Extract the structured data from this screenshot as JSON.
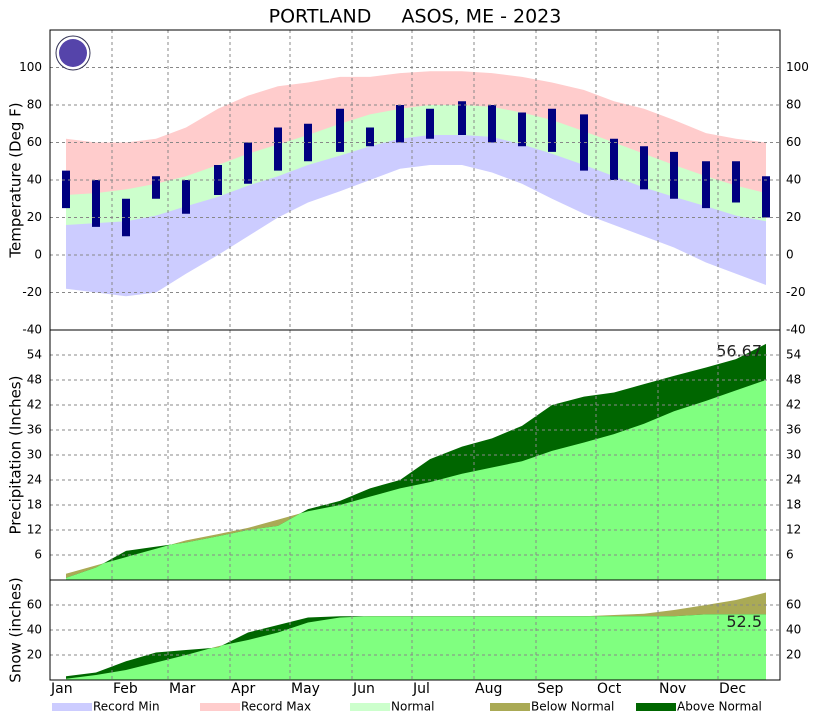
{
  "title": "PORTLAND     ASOS, ME - 2023",
  "legend": [
    {
      "name": "Record Min",
      "color": "#ccccff"
    },
    {
      "name": "Record Max",
      "color": "#ffcccc"
    },
    {
      "name": "Normal",
      "color": "#ccffcc"
    },
    {
      "name": "Below Normal",
      "color": "#aaaa55"
    },
    {
      "name": "Above Normal",
      "color": "#006600"
    }
  ],
  "chart_data": [
    {
      "type": "temperature",
      "y_label": "Temperature (Deg F)",
      "x": [
        8,
        23,
        38,
        53,
        68,
        84,
        99,
        114,
        129,
        145,
        160,
        175,
        190,
        206,
        221,
        236,
        251,
        267,
        282,
        297,
        312,
        328,
        343,
        358
      ],
      "record_max": [
        62,
        60,
        60,
        62,
        68,
        78,
        85,
        90,
        92,
        95,
        95,
        97,
        98,
        98,
        97,
        95,
        92,
        88,
        82,
        78,
        72,
        65,
        62,
        60
      ],
      "normal_high": [
        32,
        33,
        35,
        38,
        42,
        48,
        54,
        59,
        64,
        70,
        75,
        78,
        80,
        80,
        79,
        76,
        72,
        66,
        60,
        54,
        48,
        42,
        37,
        33
      ],
      "normal_low": [
        16,
        17,
        18,
        21,
        26,
        31,
        37,
        42,
        48,
        53,
        58,
        62,
        64,
        64,
        63,
        59,
        54,
        48,
        42,
        36,
        31,
        26,
        21,
        18
      ],
      "record_min": [
        -18,
        -20,
        -22,
        -20,
        -10,
        0,
        10,
        20,
        28,
        34,
        40,
        46,
        48,
        48,
        44,
        38,
        30,
        22,
        16,
        10,
        4,
        -4,
        -10,
        -16
      ],
      "actual_high": [
        45,
        40,
        30,
        42,
        40,
        48,
        60,
        68,
        70,
        78,
        68,
        80,
        78,
        82,
        80,
        76,
        78,
        75,
        62,
        58,
        55,
        50,
        50,
        42
      ],
      "actual_low": [
        25,
        15,
        10,
        30,
        22,
        32,
        38,
        45,
        50,
        55,
        58,
        60,
        62,
        64,
        60,
        58,
        55,
        45,
        40,
        35,
        30,
        25,
        28,
        20
      ],
      "actual_color": "#000080",
      "xlim": [
        0,
        365
      ],
      "xticks": [
        {
          "value": 0,
          "label": "Jan"
        },
        {
          "value": 31,
          "label": "Feb"
        },
        {
          "value": 59,
          "label": "Mar"
        },
        {
          "value": 90,
          "label": "Apr"
        },
        {
          "value": 120,
          "label": "May"
        },
        {
          "value": 151,
          "label": "Jun"
        },
        {
          "value": 181,
          "label": "Jul"
        },
        {
          "value": 212,
          "label": "Aug"
        },
        {
          "value": 243,
          "label": "Sep"
        },
        {
          "value": 273,
          "label": "Oct"
        },
        {
          "value": 304,
          "label": "Nov"
        },
        {
          "value": 334,
          "label": "Dec"
        }
      ],
      "ylim": [
        -40,
        120
      ],
      "yticks": [
        -40,
        -20,
        0,
        20,
        40,
        60,
        80,
        100
      ],
      "grid": true
    },
    {
      "type": "cumulative",
      "y_label": "Precipitation (Inches)",
      "x": [
        8,
        23,
        38,
        53,
        68,
        84,
        99,
        114,
        129,
        145,
        160,
        175,
        190,
        206,
        221,
        236,
        251,
        267,
        282,
        297,
        312,
        328,
        343,
        358
      ],
      "actual": [
        0.5,
        3,
        7,
        8,
        9,
        10.5,
        12,
        13,
        17,
        19,
        22,
        24,
        29,
        32,
        34,
        37,
        42,
        44,
        45,
        47,
        49,
        51,
        53,
        56.67
      ],
      "normal": [
        1.5,
        3.5,
        5.5,
        7.5,
        9.5,
        11,
        12.5,
        14.5,
        16.5,
        18,
        20,
        22,
        23.5,
        25.5,
        27,
        28.5,
        31,
        33,
        35,
        37.5,
        40.5,
        43,
        45.5,
        48
      ],
      "normal_color": "#80ff80",
      "annotation": "56.67",
      "ylim": [
        0,
        60
      ],
      "yticks": [
        6,
        12,
        18,
        24,
        30,
        36,
        42,
        48,
        54
      ],
      "grid": true
    },
    {
      "type": "cumulative",
      "y_label": "Snow (inches)",
      "x": [
        8,
        23,
        38,
        53,
        68,
        84,
        99,
        114,
        129,
        145,
        160,
        175,
        190,
        206,
        221,
        236,
        251,
        267,
        282,
        297,
        312,
        328,
        343,
        358
      ],
      "actual": [
        3,
        6,
        15,
        22,
        24,
        26,
        38,
        44,
        50,
        51,
        51,
        51,
        51,
        51,
        51,
        51,
        51,
        51,
        51,
        51,
        51,
        52.5,
        52.5,
        52.5
      ],
      "normal": [
        1,
        4,
        8,
        14,
        20,
        27,
        32,
        38,
        46,
        50,
        51,
        51,
        51,
        51,
        51,
        51,
        51,
        51,
        52,
        53,
        56,
        60,
        64,
        70
      ],
      "normal_color": "#80ff80",
      "annotation": "52.5",
      "ylim": [
        0,
        80
      ],
      "yticks": [
        20,
        40,
        60
      ],
      "grid": true
    }
  ]
}
